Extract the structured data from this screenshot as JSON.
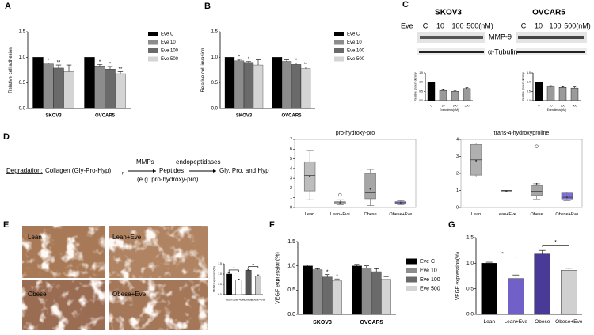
{
  "panel_letters": [
    "A",
    "B",
    "C",
    "D",
    "E",
    "F",
    "G"
  ],
  "blot": {
    "cell_lines": [
      "SKOV3",
      "OVCAR5"
    ],
    "treatment_label": "Eve",
    "doses": [
      "C",
      "10",
      "100",
      "500(nM)"
    ],
    "proteins": [
      "MMP-9",
      "α-Tubulin"
    ]
  },
  "diagram": {
    "label": "Degradation:",
    "substrate": "Collagen (Gly-Pro-Hyp)",
    "subscript": "n",
    "enzyme1": "MMPs",
    "enzyme2": "endopeptidases",
    "intermediate": "Peptides",
    "example": "(e.g. pro-hydroxy-pro)",
    "products": "Gly, Pro, and Hyp"
  },
  "ihc_labels": [
    "Lean",
    "Lean+Eve",
    "Obese",
    "Obese+Eve"
  ],
  "chart_data": [
    {
      "type": "bar",
      "ylabel": "Relative cell adhesion",
      "categories": [
        "SKOV3",
        "OVCAR5"
      ],
      "ylim": [
        0,
        1.5
      ],
      "yticks": [
        {
          "value": 0,
          "label": "0.0"
        },
        {
          "value": 0.5,
          "label": "0.5"
        },
        {
          "value": 1,
          "label": "1.0"
        },
        {
          "value": 1.5,
          "label": "1.5"
        }
      ],
      "series": [
        {
          "name": "Eve C",
          "color": "#000000",
          "values": [
            1.0,
            1.0
          ]
        },
        {
          "name": "Eve 10",
          "color": "#8c8c8c",
          "values": [
            0.87,
            0.83
          ],
          "errors": [
            0.02,
            0.03
          ],
          "annotations": [
            "*",
            "*"
          ]
        },
        {
          "name": "Eve 100",
          "color": "#6a6a6a",
          "values": [
            0.79,
            0.77
          ],
          "errors": [
            0.06,
            0.05
          ],
          "annotations": [
            "**",
            "*"
          ]
        },
        {
          "name": "Eve 500",
          "color": "#d4d4d4",
          "values": [
            0.72,
            0.68
          ],
          "errors": [
            0.13,
            0.04
          ],
          "annotations": [
            null,
            "**"
          ]
        }
      ]
    },
    {
      "type": "bar",
      "ylabel": "Relative cell invasion",
      "categories": [
        "SKOV3",
        "OVCAR5"
      ],
      "ylim": [
        0,
        1.5
      ],
      "yticks": [
        {
          "value": 0,
          "label": "0.0"
        },
        {
          "value": 0.5,
          "label": "0.5"
        },
        {
          "value": 1,
          "label": "1.0"
        },
        {
          "value": 1.5,
          "label": "1.5"
        }
      ],
      "series": [
        {
          "name": "Eve C",
          "color": "#000000",
          "values": [
            1.0,
            1.0
          ]
        },
        {
          "name": "Eve 10",
          "color": "#8c8c8c",
          "values": [
            0.93,
            0.92
          ],
          "errors": [
            0.03,
            0.03
          ],
          "annotations": [
            "*",
            null
          ]
        },
        {
          "name": "Eve 100",
          "color": "#6a6a6a",
          "values": [
            0.9,
            0.86
          ],
          "errors": [
            0.02,
            0.03
          ],
          "annotations": [
            "*",
            "*"
          ]
        },
        {
          "name": "Eve 500",
          "color": "#d4d4d4",
          "values": [
            0.85,
            0.78
          ],
          "errors": [
            0.1,
            0.03
          ],
          "annotations": [
            null,
            "**"
          ]
        }
      ]
    },
    {
      "type": "bar",
      "ylabel": "Relative protein density",
      "xlabel": "Everolimus(nM)",
      "categories": [
        "0",
        "10",
        "100",
        "500"
      ],
      "ylim": [
        0,
        1.5
      ],
      "yticks": [
        {
          "value": 0,
          "label": "0.0"
        },
        {
          "value": 0.5,
          "label": "0.5"
        },
        {
          "value": 1,
          "label": "1.0"
        },
        {
          "value": 1.5,
          "label": "1.5"
        }
      ],
      "values": [
        1.0,
        0.55,
        0.5,
        0.65
      ],
      "errors": [
        0.01,
        0.04,
        0.03,
        0.05
      ],
      "colors": [
        "#000000",
        "#9a9a9a",
        "#9a9a9a",
        "#9a9a9a"
      ]
    },
    {
      "type": "bar",
      "ylabel": "Relative protein density",
      "xlabel": "Everolimus(nM)",
      "categories": [
        "0",
        "10",
        "100",
        "500"
      ],
      "ylim": [
        0,
        1.5
      ],
      "yticks": [
        {
          "value": 0,
          "label": "0.0"
        },
        {
          "value": 0.5,
          "label": "0.5"
        },
        {
          "value": 1,
          "label": "1.0"
        },
        {
          "value": 1.5,
          "label": "1.5"
        }
      ],
      "values": [
        1.0,
        0.75,
        0.72,
        0.68
      ],
      "errors": [
        0.01,
        0.06,
        0.04,
        0.06
      ],
      "colors": [
        "#000000",
        "#9a9a9a",
        "#9a9a9a",
        "#9a9a9a"
      ]
    },
    {
      "type": "box",
      "title": "pro-hydroxy-pro",
      "categories": [
        "Lean",
        "Lean+Eve",
        "Obese",
        "Obese+Eve"
      ],
      "ylim": [
        0,
        7
      ],
      "yticks": [
        0,
        1,
        2,
        3,
        4,
        5,
        6,
        7
      ],
      "colors": [
        "#bdbdbd",
        "#e6e6e6",
        "#a6a6a6",
        "#8a8ae6"
      ],
      "boxes": [
        {
          "min": 0.8,
          "q1": 1.7,
          "median": 3.3,
          "q3": 4.7,
          "max": 5.8,
          "mean": 3.2,
          "outliers": []
        },
        {
          "min": 0.3,
          "q1": 0.4,
          "median": 0.5,
          "q3": 0.6,
          "max": 0.8,
          "mean": 0.5,
          "outliers": [
            1.3
          ]
        },
        {
          "min": 0.2,
          "q1": 0.9,
          "median": 1.5,
          "q3": 3.5,
          "max": 3.9,
          "mean": 1.9,
          "outliers": []
        },
        {
          "min": 0.3,
          "q1": 0.4,
          "median": 0.5,
          "q3": 0.6,
          "max": 0.7,
          "mean": 0.5,
          "outliers": []
        }
      ]
    },
    {
      "type": "box",
      "title": "trans-4-hydroxyproline",
      "categories": [
        "Lean",
        "Lean+Eve",
        "Obese",
        "Obese+Eve"
      ],
      "ylim": [
        0,
        4
      ],
      "yticks": [
        0,
        1,
        2,
        3,
        4
      ],
      "colors": [
        "#b0b0b0",
        "#e6e6e6",
        "#a6a6a6",
        "#7b6fe0"
      ],
      "boxes": [
        {
          "min": 1.8,
          "q1": 1.9,
          "median": 2.8,
          "q3": 3.7,
          "max": 3.8,
          "mean": 2.75,
          "outliers": []
        },
        {
          "min": 0.9,
          "q1": 0.95,
          "median": 1.0,
          "q3": 1.0,
          "max": 1.0,
          "mean": 0.95,
          "outliers": []
        },
        {
          "min": 0.5,
          "q1": 0.7,
          "median": 0.95,
          "q3": 1.3,
          "max": 1.4,
          "mean": 1.4,
          "outliers": [
            3.6
          ]
        },
        {
          "min": 0.4,
          "q1": 0.5,
          "median": 0.6,
          "q3": 0.85,
          "max": 0.9,
          "mean": 0.6,
          "outliers": []
        }
      ]
    },
    {
      "type": "bar",
      "ylabel": "VEGF expression(%)",
      "categories": [
        "Lean",
        "Lean+Eve",
        "Obese",
        "Obese+Eve"
      ],
      "ylim": [
        0,
        1.5
      ],
      "yticks": [
        {
          "value": 0,
          "label": "0.0"
        },
        {
          "value": 0.5,
          "label": "0.5"
        },
        {
          "value": 1,
          "label": "1.0"
        },
        {
          "value": 1.5,
          "label": "1.5"
        }
      ],
      "values": [
        1.0,
        0.72,
        1.18,
        0.9
      ],
      "errors": [
        0.06,
        0.04,
        0.05,
        0.06
      ],
      "colors": [
        "#000000",
        "#ffffff",
        "#555555",
        "#cccccc"
      ],
      "annotations": [
        "**",
        "**"
      ]
    },
    {
      "type": "bar",
      "ylabel": "VEGF expression(%)",
      "categories": [
        "SKOV3",
        "OVCAR5"
      ],
      "ylim": [
        0,
        1.5
      ],
      "yticks": [
        {
          "value": 0,
          "label": "0.0"
        },
        {
          "value": 0.5,
          "label": "0.5"
        },
        {
          "value": 1,
          "label": "1.0"
        },
        {
          "value": 1.5,
          "label": "1.5"
        }
      ],
      "series": [
        {
          "name": "Eve C",
          "color": "#000000",
          "values": [
            1.0,
            1.0
          ],
          "errors": [
            0.02,
            0.03
          ]
        },
        {
          "name": "Eve 10",
          "color": "#8c8c8c",
          "values": [
            0.92,
            0.95
          ],
          "errors": [
            0.02,
            0.05
          ]
        },
        {
          "name": "Eve 100",
          "color": "#6a6a6a",
          "values": [
            0.77,
            0.88
          ],
          "errors": [
            0.05,
            0.06
          ],
          "annotations": [
            "*",
            null
          ]
        },
        {
          "name": "Eve 500",
          "color": "#d4d4d4",
          "values": [
            0.69,
            0.72
          ],
          "errors": [
            0.04,
            0.06
          ],
          "annotations": [
            "*",
            null
          ]
        }
      ]
    },
    {
      "type": "bar",
      "ylabel": "VEGF expression(%)",
      "categories": [
        "Lean",
        "Lean+Eve",
        "Obese",
        "Obese+Eve"
      ],
      "ylim": [
        0,
        1.5
      ],
      "yticks": [
        {
          "value": 0,
          "label": "0.0"
        },
        {
          "value": 0.5,
          "label": "0.5"
        },
        {
          "value": 1,
          "label": "1.0"
        },
        {
          "value": 1.5,
          "label": "1.5"
        }
      ],
      "values": [
        1.0,
        0.7,
        1.18,
        0.86
      ],
      "errors": [
        0.02,
        0.07,
        0.07,
        0.04
      ],
      "colors": [
        "#000000",
        "#7160c8",
        "#4a3a98",
        "#d0d0d0"
      ],
      "annotations": [
        "*",
        "*"
      ]
    }
  ]
}
